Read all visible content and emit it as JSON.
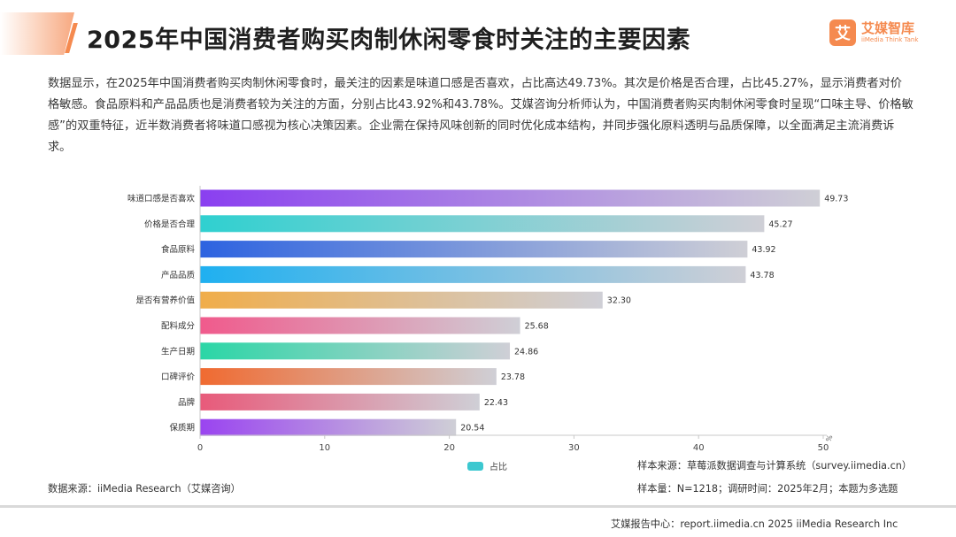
{
  "header": {
    "title": "2025年中国消费者购买肉制休闲零食时关注的主要因素",
    "logo_mark": "艾",
    "logo_cn": "艾媒智库",
    "logo_en": "iiMedia Think Tank"
  },
  "description": "数据显示，在2025年中国消费者购买肉制休闲零食时，最关注的因素是味道口感是否喜欢，占比高达49.73%。其次是价格是否合理，占比45.27%，显示消费者对价格敏感。食品原料和产品品质也是消费者较为关注的方面，分别占比43.92%和43.78%。艾媒咨询分析师认为，中国消费者购买肉制休闲零食时呈现“口味主导、价格敏感”的双重特征，近半数消费者将味道口感视为核心决策因素。企业需在保持风味创新的同时优化成本结构，并同步强化原料透明与品质保障，以全面满足主流消费诉求。",
  "chart_data": {
    "type": "bar",
    "orientation": "horizontal",
    "categories": [
      "味道口感是否喜欢",
      "价格是否合理",
      "食品原料",
      "产品品质",
      "是否有营养价值",
      "配料成分",
      "生产日期",
      "口碑评价",
      "品牌",
      "保质期"
    ],
    "values": [
      49.73,
      45.27,
      43.92,
      43.78,
      32.3,
      25.68,
      24.86,
      23.78,
      22.43,
      20.54
    ],
    "value_labels": [
      "49.73",
      "45.27",
      "43.92",
      "43.78",
      "32.30",
      "25.68",
      "24.86",
      "23.78",
      "22.43",
      "20.54"
    ],
    "bar_colors": [
      "#8a3ff0",
      "#2fd0d0",
      "#2d63e0",
      "#1fb0f0",
      "#f0ad4a",
      "#f05a8c",
      "#2ad6a6",
      "#f06a30",
      "#e85a7a",
      "#9a44f0"
    ],
    "bar_end_color": "#cfcfd6",
    "xlim": [
      0,
      50
    ],
    "xticks": [
      "0",
      "10",
      "20",
      "30",
      "40",
      "50"
    ],
    "x_unit": "%",
    "legend": {
      "label": "占比",
      "color": "#3cc8d0",
      "position": "bottom"
    },
    "grid": false
  },
  "notes": {
    "sample_source": "样本来源：草莓派数据调查与计算系统（survey.iimedia.cn）",
    "sample_size": "样本量：N=1218；调研时间：2025年2月；本题为多选题",
    "data_source": "数据来源：iiMedia Research（艾媒咨询）"
  },
  "footer": {
    "text": "艾媒报告中心：report.iimedia.cn  2025 iiMedia Research Inc"
  }
}
